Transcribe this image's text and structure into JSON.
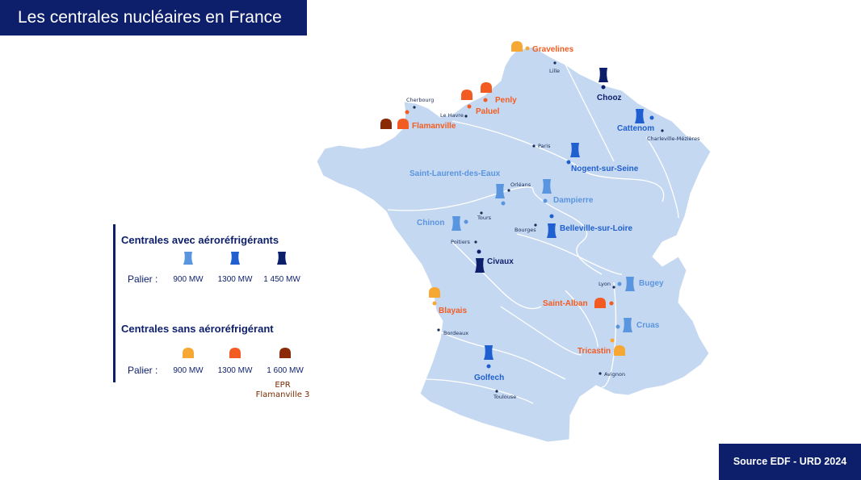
{
  "title": "Les centrales nucléaires en France",
  "source": "Source EDF - URD 2024",
  "colors": {
    "navy": "#0d1f6b",
    "land": "#c5d8f1",
    "river": "#ffffff",
    "cool_900": "#5a95df",
    "cool_1300": "#1f5fcf",
    "cool_1450": "#0d1f6b",
    "dome_900": "#f7a733",
    "dome_1300": "#f25c22",
    "dome_1600": "#8a2a06"
  },
  "legend": {
    "cooling_title": "Centrales avec aéroréfrigérants",
    "nocooling_title": "Centrales sans aéroréfrigérant",
    "palier_label": "Palier :",
    "cooling_mw": [
      "900 MW",
      "1300 MW",
      "1 450 MW"
    ],
    "nocooling_mw": [
      "900 MW",
      "1300 MW",
      "1 600 MW"
    ],
    "epr_note_line1": "EPR",
    "epr_note_line2": "Flamanville 3"
  },
  "plants": [
    {
      "name": "Gravelines",
      "type": "dome",
      "power": "900"
    },
    {
      "name": "Penly",
      "type": "dome",
      "power": "1300"
    },
    {
      "name": "Paluel",
      "type": "dome",
      "power": "1300"
    },
    {
      "name": "Flamanville",
      "type": "dome",
      "power": "1300"
    },
    {
      "name": "Chooz",
      "type": "tower",
      "power": "1450"
    },
    {
      "name": "Cattenom",
      "type": "tower",
      "power": "1300"
    },
    {
      "name": "Nogent-sur-Seine",
      "type": "tower",
      "power": "1300"
    },
    {
      "name": "Saint-Laurent-des-Eaux",
      "type": "tower",
      "power": "900"
    },
    {
      "name": "Dampierre",
      "type": "tower",
      "power": "900"
    },
    {
      "name": "Chinon",
      "type": "tower",
      "power": "900"
    },
    {
      "name": "Belleville-sur-Loire",
      "type": "tower",
      "power": "1300"
    },
    {
      "name": "Civaux",
      "type": "tower",
      "power": "1450"
    },
    {
      "name": "Bugey",
      "type": "tower",
      "power": "900"
    },
    {
      "name": "Saint-Alban",
      "type": "dome",
      "power": "1300"
    },
    {
      "name": "Blayais",
      "type": "dome",
      "power": "900"
    },
    {
      "name": "Cruas",
      "type": "tower",
      "power": "900"
    },
    {
      "name": "Tricastin",
      "type": "dome",
      "power": "900"
    },
    {
      "name": "Golfech",
      "type": "tower",
      "power": "1300"
    }
  ],
  "cities": [
    "Lille",
    "Cherbourg",
    "Le Havre",
    "Paris",
    "Charleville-Mézières",
    "Orléans",
    "Tours",
    "Bourges",
    "Poitiers",
    "Lyon",
    "Bordeaux",
    "Avignon",
    "Toulouse"
  ]
}
